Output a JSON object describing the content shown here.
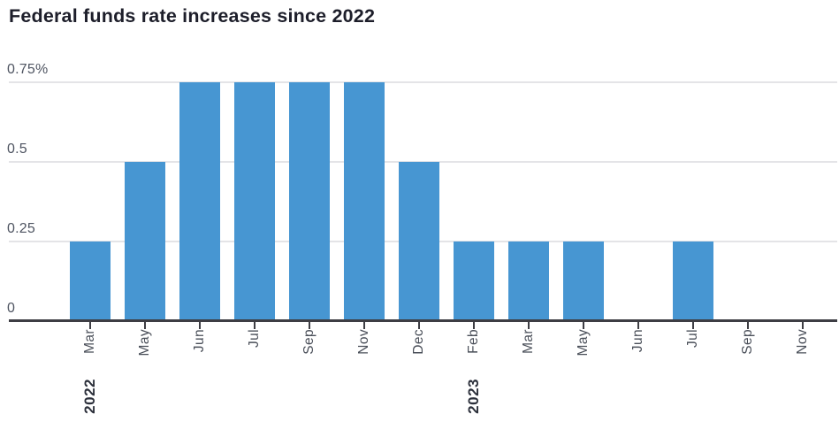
{
  "chart_data": {
    "type": "bar",
    "title": "Federal funds rate increases since 2022",
    "xlabel": "",
    "ylabel": "",
    "unit": "percentage points",
    "ylim": [
      0,
      0.75
    ],
    "grid": "horizontal",
    "legend": "none",
    "bar_color": "#4796d2",
    "categories": [
      "Mar 2022",
      "May 2022",
      "Jun 2022",
      "Jul 2022",
      "Sep 2022",
      "Nov 2022",
      "Dec 2022",
      "Feb 2023",
      "Mar 2023",
      "May 2023",
      "Jun 2023",
      "Jul 2023",
      "Sep 2023",
      "Nov 2023"
    ],
    "x_tick_labels": [
      "Mar",
      "May",
      "Jun",
      "Jul",
      "Sep",
      "Nov",
      "Dec",
      "Feb",
      "Mar",
      "May",
      "Jun",
      "Jul",
      "Sep",
      "Nov"
    ],
    "year_markers": [
      {
        "index": 0,
        "label": "2022"
      },
      {
        "index": 7,
        "label": "2023"
      }
    ],
    "values": [
      0.25,
      0.5,
      0.75,
      0.75,
      0.75,
      0.75,
      0.5,
      0.25,
      0.25,
      0.25,
      0,
      0.25,
      0,
      0
    ],
    "y_ticks": [
      {
        "value": 0,
        "label": "0"
      },
      {
        "value": 0.25,
        "label": "0.25"
      },
      {
        "value": 0.5,
        "label": "0.5"
      },
      {
        "value": 0.75,
        "label": "0.75%"
      }
    ]
  }
}
